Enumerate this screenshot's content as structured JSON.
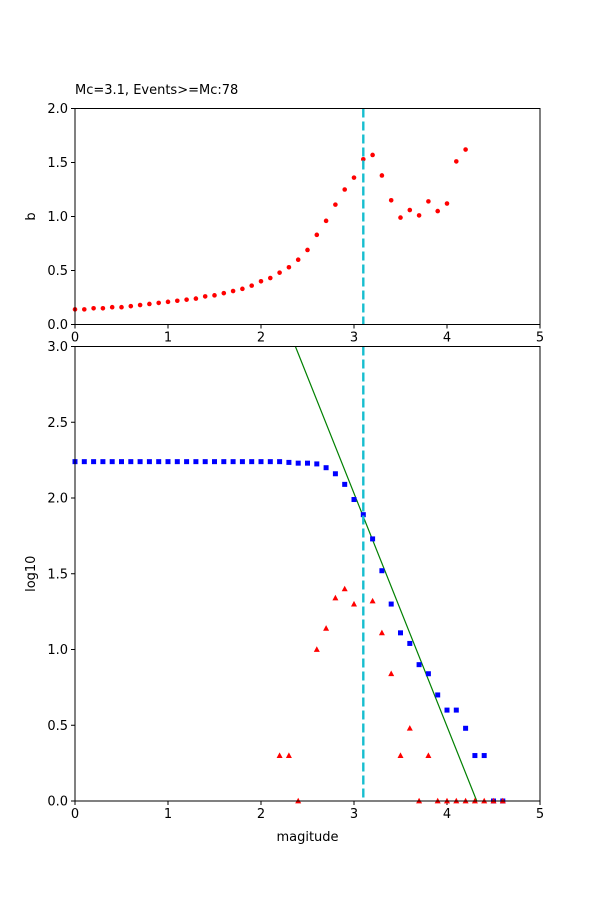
{
  "chart_data": [
    {
      "type": "scatter",
      "title": "Mc=3.1, Events>=Mc:78",
      "xlabel": "",
      "ylabel": "b",
      "xlim": [
        0,
        5
      ],
      "ylim": [
        0,
        2
      ],
      "xticks": [
        "0",
        "1",
        "2",
        "3",
        "4",
        "5"
      ],
      "yticks": [
        "0.0",
        "0.5",
        "1.0",
        "1.5",
        "2.0"
      ],
      "mc_line": {
        "x": 3.1,
        "color": "#17becf",
        "style": "dashed"
      },
      "series": [
        {
          "marker": "circle",
          "color": "#ff0000",
          "x": [
            0.0,
            0.1,
            0.2,
            0.3,
            0.4,
            0.5,
            0.6,
            0.7,
            0.8,
            0.9,
            1.0,
            1.1,
            1.2,
            1.3,
            1.4,
            1.5,
            1.6,
            1.7,
            1.8,
            1.9,
            2.0,
            2.1,
            2.2,
            2.3,
            2.4,
            2.5,
            2.6,
            2.7,
            2.8,
            2.9,
            3.0,
            3.1,
            3.2,
            3.3,
            3.4,
            3.5,
            3.6,
            3.7,
            3.8,
            3.9,
            4.0,
            4.1,
            4.2
          ],
          "y": [
            0.14,
            0.14,
            0.15,
            0.15,
            0.16,
            0.16,
            0.17,
            0.18,
            0.19,
            0.2,
            0.21,
            0.22,
            0.23,
            0.24,
            0.26,
            0.27,
            0.29,
            0.31,
            0.33,
            0.36,
            0.4,
            0.43,
            0.48,
            0.53,
            0.6,
            0.69,
            0.83,
            0.96,
            1.11,
            1.25,
            1.36,
            1.53,
            1.57,
            1.38,
            1.15,
            0.99,
            1.06,
            1.01,
            1.14,
            1.05,
            1.12,
            1.51,
            1.62
          ]
        }
      ]
    },
    {
      "type": "scatter",
      "title": "",
      "xlabel": "magitude",
      "ylabel": "log10",
      "xlim": [
        0,
        5
      ],
      "ylim": [
        0,
        3
      ],
      "xticks": [
        "0",
        "1",
        "2",
        "3",
        "4",
        "5"
      ],
      "yticks": [
        "0.0",
        "0.5",
        "1.0",
        "1.5",
        "2.0",
        "2.5",
        "3.0"
      ],
      "mc_line": {
        "x": 3.1,
        "color": "#17becf",
        "style": "dashed"
      },
      "fit_line": {
        "color": "#008000",
        "x": [
          2.37,
          4.32
        ],
        "y": [
          3.0,
          0.0
        ]
      },
      "series": [
        {
          "marker": "square",
          "color": "#0000ff",
          "x": [
            0.0,
            0.1,
            0.2,
            0.3,
            0.4,
            0.5,
            0.6,
            0.7,
            0.8,
            0.9,
            1.0,
            1.1,
            1.2,
            1.3,
            1.4,
            1.5,
            1.6,
            1.7,
            1.8,
            1.9,
            2.0,
            2.1,
            2.2,
            2.3,
            2.4,
            2.5,
            2.6,
            2.7,
            2.8,
            2.9,
            3.0,
            3.1,
            3.2,
            3.3,
            3.4,
            3.5,
            3.6,
            3.7,
            3.8,
            3.9,
            4.0,
            4.1,
            4.2,
            4.3,
            4.4,
            4.5,
            4.6
          ],
          "y": [
            2.24,
            2.24,
            2.24,
            2.24,
            2.24,
            2.24,
            2.24,
            2.24,
            2.24,
            2.24,
            2.24,
            2.24,
            2.24,
            2.24,
            2.24,
            2.24,
            2.24,
            2.24,
            2.24,
            2.24,
            2.24,
            2.24,
            2.24,
            2.235,
            2.23,
            2.23,
            2.225,
            2.2,
            2.16,
            2.09,
            1.99,
            1.89,
            1.73,
            1.52,
            1.3,
            1.11,
            1.04,
            0.9,
            0.84,
            0.7,
            0.6,
            0.6,
            0.48,
            0.3,
            0.3,
            0.0,
            0.0
          ]
        },
        {
          "marker": "triangle",
          "color": "#ff0000",
          "x": [
            2.2,
            2.3,
            2.4,
            2.6,
            2.7,
            2.8,
            2.9,
            3.0,
            3.2,
            3.3,
            3.4,
            3.5,
            3.6,
            3.7,
            3.8,
            3.9,
            4.0,
            4.1,
            4.2,
            4.3,
            4.4,
            4.5,
            4.6
          ],
          "y": [
            0.3,
            0.3,
            0.0,
            1.0,
            1.14,
            1.34,
            1.4,
            1.3,
            1.32,
            1.11,
            0.84,
            0.3,
            0.48,
            0.0,
            0.3,
            0.0,
            0.0,
            0.0,
            0.0,
            0.0,
            0.0,
            0.0,
            0.0
          ]
        }
      ]
    }
  ]
}
